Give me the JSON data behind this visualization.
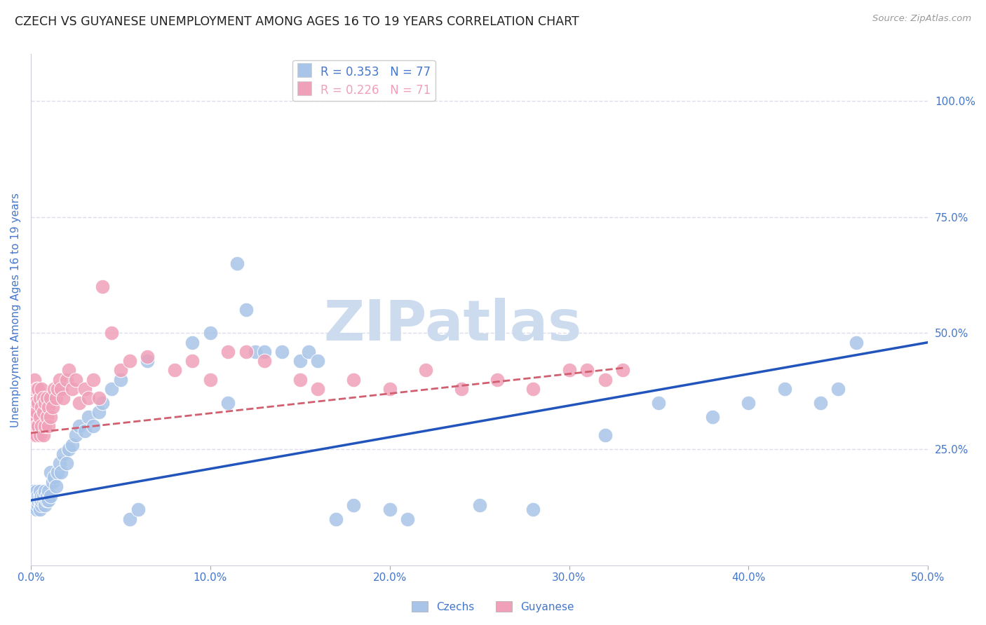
{
  "title": "CZECH VS GUYANESE UNEMPLOYMENT AMONG AGES 16 TO 19 YEARS CORRELATION CHART",
  "source": "Source: ZipAtlas.com",
  "ylabel": "Unemployment Among Ages 16 to 19 years",
  "xlim": [
    0.0,
    0.5
  ],
  "ylim": [
    0.0,
    1.1
  ],
  "xticks": [
    0.0,
    0.1,
    0.2,
    0.3,
    0.4,
    0.5
  ],
  "xtick_labels": [
    "0.0%",
    "10.0%",
    "20.0%",
    "30.0%",
    "40.0%",
    "50.0%"
  ],
  "yticks_right": [
    0.25,
    0.5,
    0.75,
    1.0
  ],
  "ytick_right_labels": [
    "25.0%",
    "50.0%",
    "75.0%",
    "100.0%"
  ],
  "legend_czech_R": "R = 0.353",
  "legend_czech_N": "N = 77",
  "legend_guyanese_R": "R = 0.226",
  "legend_guyanese_N": "N = 71",
  "czech_color": "#a8c4e8",
  "guyanese_color": "#f0a0b8",
  "czech_line_color": "#2255bb",
  "guyanese_line_color": "#d06070",
  "title_color": "#222222",
  "axis_label_color": "#4477cc",
  "watermark": "ZIPatlas",
  "watermark_color": "#ccdcee",
  "background_color": "#ffffff",
  "grid_color": "#ddddee",
  "fig_width": 14.06,
  "fig_height": 8.92,
  "czech_trend_x": [
    0.0,
    0.5
  ],
  "czech_trend_y": [
    0.14,
    0.48
  ],
  "guyanese_trend_x": [
    0.0,
    0.33
  ],
  "guyanese_trend_y": [
    0.285,
    0.425
  ],
  "czech_x": [
    0.001,
    0.001,
    0.001,
    0.002,
    0.002,
    0.002,
    0.003,
    0.003,
    0.003,
    0.003,
    0.004,
    0.004,
    0.004,
    0.005,
    0.005,
    0.005,
    0.005,
    0.006,
    0.006,
    0.006,
    0.007,
    0.007,
    0.008,
    0.008,
    0.009,
    0.009,
    0.01,
    0.01,
    0.011,
    0.011,
    0.012,
    0.013,
    0.014,
    0.015,
    0.016,
    0.017,
    0.018,
    0.02,
    0.021,
    0.023,
    0.025,
    0.027,
    0.03,
    0.032,
    0.035,
    0.038,
    0.04,
    0.045,
    0.05,
    0.055,
    0.06,
    0.065,
    0.09,
    0.1,
    0.11,
    0.115,
    0.12,
    0.125,
    0.13,
    0.14,
    0.15,
    0.155,
    0.16,
    0.17,
    0.18,
    0.2,
    0.21,
    0.25,
    0.28,
    0.32,
    0.35,
    0.38,
    0.4,
    0.42,
    0.44,
    0.45,
    0.46
  ],
  "czech_y": [
    0.14,
    0.15,
    0.16,
    0.13,
    0.14,
    0.15,
    0.12,
    0.14,
    0.15,
    0.16,
    0.13,
    0.14,
    0.15,
    0.12,
    0.14,
    0.15,
    0.16,
    0.13,
    0.14,
    0.15,
    0.14,
    0.15,
    0.13,
    0.16,
    0.14,
    0.15,
    0.14,
    0.16,
    0.15,
    0.2,
    0.18,
    0.19,
    0.17,
    0.2,
    0.22,
    0.2,
    0.24,
    0.22,
    0.25,
    0.26,
    0.28,
    0.3,
    0.29,
    0.32,
    0.3,
    0.33,
    0.35,
    0.38,
    0.4,
    0.1,
    0.12,
    0.44,
    0.48,
    0.5,
    0.35,
    0.65,
    0.55,
    0.46,
    0.46,
    0.46,
    0.44,
    0.46,
    0.44,
    0.1,
    0.13,
    0.12,
    0.1,
    0.13,
    0.12,
    0.28,
    0.35,
    0.32,
    0.35,
    0.38,
    0.35,
    0.38,
    0.48
  ],
  "guyanese_x": [
    0.001,
    0.001,
    0.001,
    0.001,
    0.002,
    0.002,
    0.002,
    0.002,
    0.003,
    0.003,
    0.003,
    0.003,
    0.004,
    0.004,
    0.004,
    0.005,
    0.005,
    0.005,
    0.006,
    0.006,
    0.006,
    0.007,
    0.007,
    0.007,
    0.008,
    0.008,
    0.009,
    0.009,
    0.01,
    0.01,
    0.011,
    0.011,
    0.012,
    0.013,
    0.014,
    0.015,
    0.016,
    0.017,
    0.018,
    0.02,
    0.021,
    0.023,
    0.025,
    0.027,
    0.03,
    0.032,
    0.035,
    0.038,
    0.04,
    0.045,
    0.05,
    0.055,
    0.065,
    0.08,
    0.09,
    0.1,
    0.11,
    0.12,
    0.13,
    0.15,
    0.16,
    0.18,
    0.2,
    0.22,
    0.24,
    0.26,
    0.28,
    0.3,
    0.31,
    0.32,
    0.33
  ],
  "guyanese_y": [
    0.3,
    0.32,
    0.35,
    0.38,
    0.28,
    0.32,
    0.35,
    0.4,
    0.28,
    0.3,
    0.33,
    0.38,
    0.3,
    0.35,
    0.38,
    0.28,
    0.32,
    0.36,
    0.3,
    0.34,
    0.38,
    0.28,
    0.33,
    0.36,
    0.3,
    0.35,
    0.32,
    0.36,
    0.3,
    0.34,
    0.32,
    0.36,
    0.34,
    0.38,
    0.36,
    0.38,
    0.4,
    0.38,
    0.36,
    0.4,
    0.42,
    0.38,
    0.4,
    0.35,
    0.38,
    0.36,
    0.4,
    0.36,
    0.6,
    0.5,
    0.42,
    0.44,
    0.45,
    0.42,
    0.44,
    0.4,
    0.46,
    0.46,
    0.44,
    0.4,
    0.38,
    0.4,
    0.38,
    0.42,
    0.38,
    0.4,
    0.38,
    0.42,
    0.42,
    0.4,
    0.42
  ]
}
